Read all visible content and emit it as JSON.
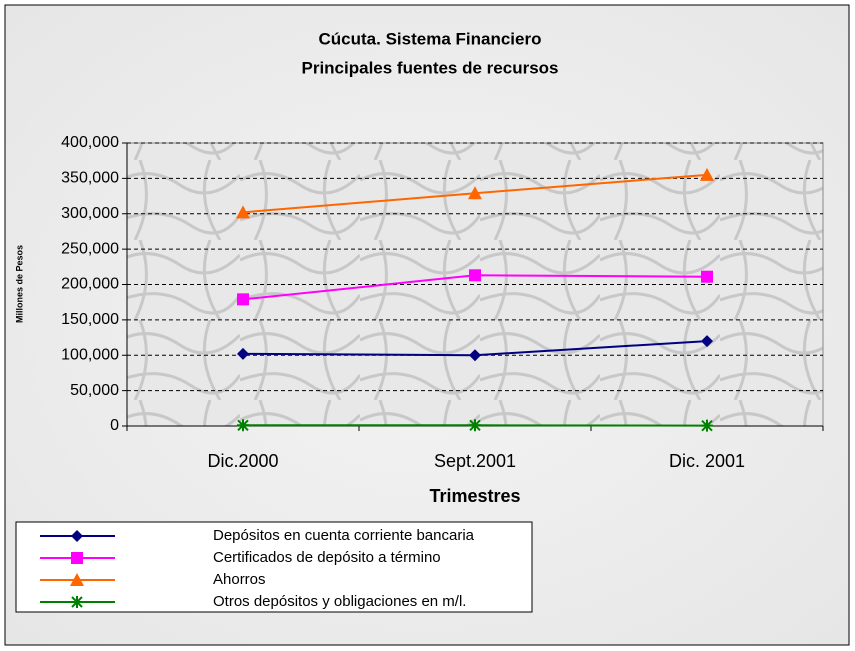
{
  "chart_data": {
    "type": "line",
    "title": "Cúcuta. Sistema Financiero",
    "subtitle": "Principales fuentes de recursos",
    "x_label": "Trimestres",
    "y_label": "Millones de Pesos",
    "categories": [
      "Dic.2000",
      "Sept.2001",
      "Dic. 2001"
    ],
    "series": [
      {
        "name": "Depósitos en cuenta corriente bancaria",
        "color": "#000080",
        "marker": "diamond",
        "values": [
          102000,
          100000,
          120000
        ]
      },
      {
        "name": "Certificados de depósito a término",
        "color": "#ff00ff",
        "marker": "square",
        "values": [
          179000,
          213000,
          211000
        ]
      },
      {
        "name": "Ahorros",
        "color": "#ff6600",
        "marker": "triangle",
        "values": [
          302000,
          329000,
          355000
        ]
      },
      {
        "name": "Otros depósitos y obligaciones en m/l.",
        "color": "#008000",
        "marker": "star",
        "values": [
          1000,
          1000,
          500
        ]
      }
    ],
    "ylim": [
      0,
      400000
    ],
    "yticks": [
      0,
      {
        "value": 50000,
        "label": "50,000"
      },
      {
        "value": 100000,
        "label": "100,000"
      },
      {
        "value": 150000,
        "label": "150,000"
      },
      {
        "value": 200000,
        "label": "200,000"
      },
      {
        "value": 250000,
        "label": "250,000"
      },
      {
        "value": 300000,
        "label": "300,000"
      },
      {
        "value": 350000,
        "label": "350,000"
      },
      {
        "value": 400000,
        "label": "400,000"
      }
    ],
    "grid": true
  }
}
